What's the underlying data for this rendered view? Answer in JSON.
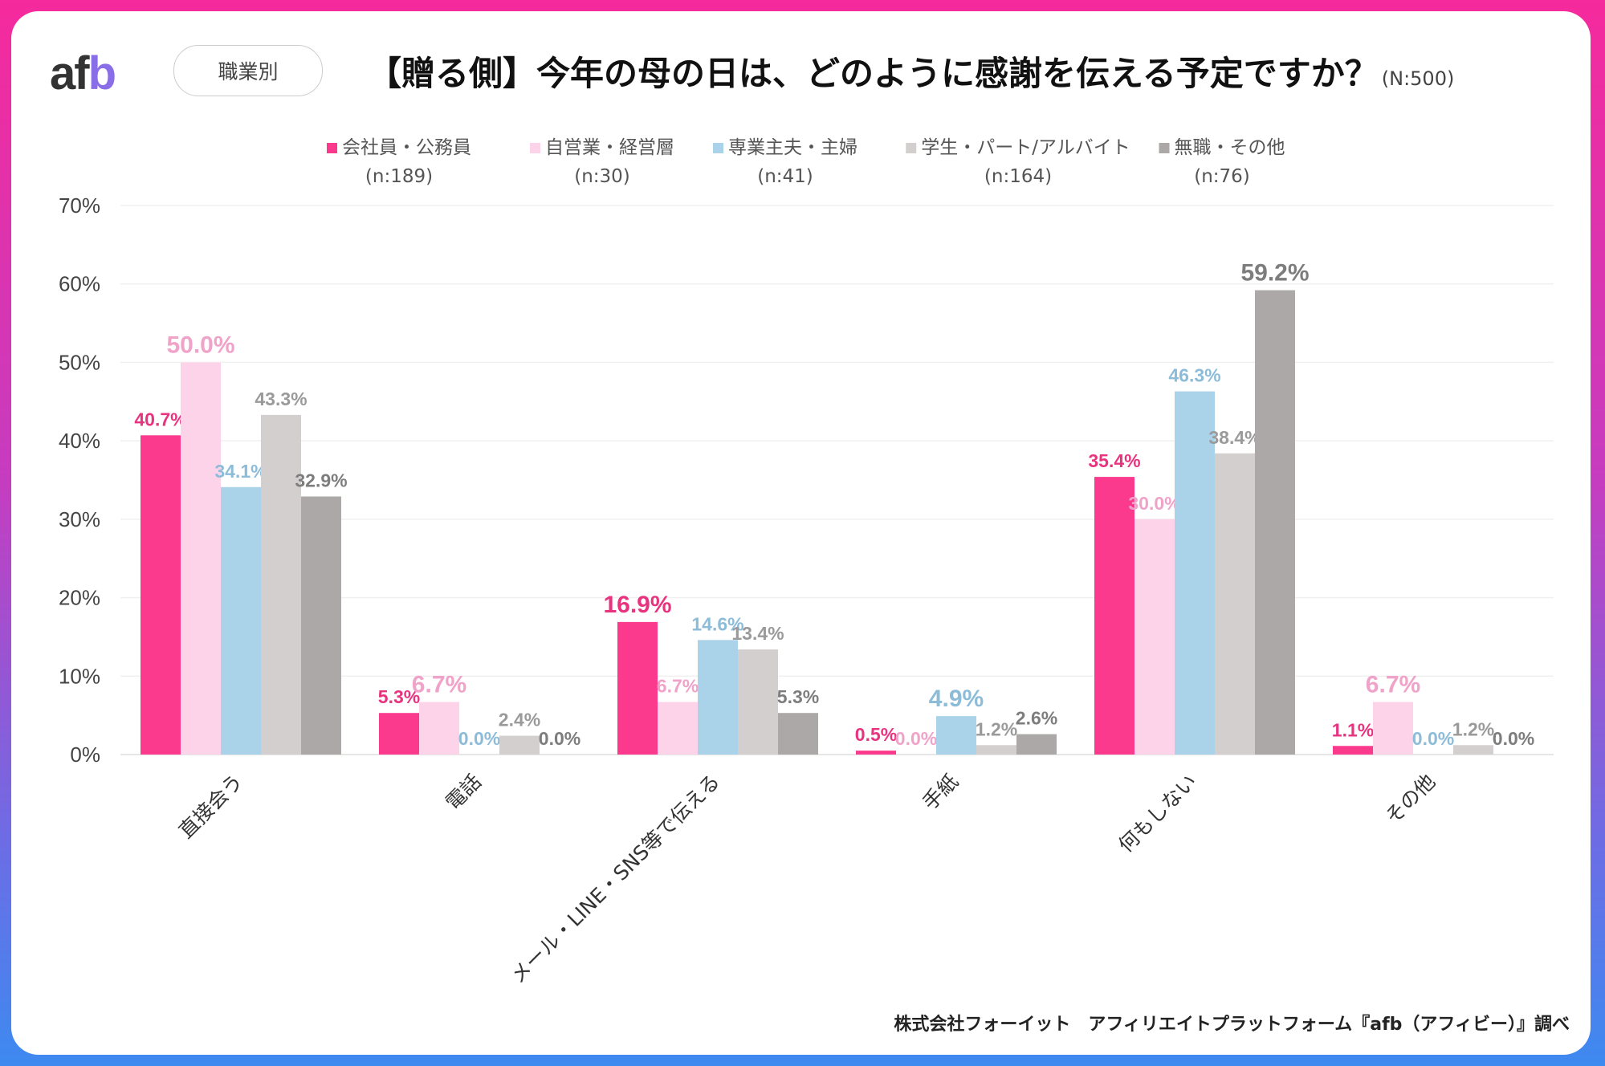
{
  "header": {
    "logo": "afb",
    "filter_pill": "職業別",
    "title": "【贈る側】今年の母の日は、どのように感謝を伝える予定ですか？",
    "sample": "(N:500)"
  },
  "source": "株式会社フォーイット　アフィリエイトプラットフォーム『afb（アフィビー）』調べ",
  "chart_data": {
    "type": "bar",
    "categories": [
      "直接会う",
      "電話",
      "メール・LINE・SNS等で伝える",
      "手紙",
      "何もしない",
      "その他"
    ],
    "series": [
      {
        "name": "会社員・公務員",
        "n": "(n:189)",
        "color": "#fb3a8e",
        "label_color": "#e8337f",
        "values": [
          40.7,
          5.3,
          16.9,
          0.5,
          35.4,
          1.1
        ]
      },
      {
        "name": "自営業・経営層",
        "n": "(n:30)",
        "color": "#fdd3ea",
        "label_color": "#f0a3c9",
        "values": [
          50.0,
          6.7,
          6.7,
          0.0,
          30.0,
          6.7
        ]
      },
      {
        "name": "専業主夫・主婦",
        "n": "(n:41)",
        "color": "#aad3ea",
        "label_color": "#8dbcd9",
        "values": [
          34.1,
          0.0,
          14.6,
          4.9,
          46.3,
          0.0
        ]
      },
      {
        "name": "学生・パート/アルバイト",
        "n": "(n:164)",
        "color": "#d3cfcf",
        "label_color": "#9a9a9a",
        "values": [
          43.3,
          2.4,
          13.4,
          1.2,
          38.4,
          1.2
        ]
      },
      {
        "name": "無職・その他",
        "n": "(n:76)",
        "color": "#aca8a7",
        "label_color": "#7d7d7d",
        "values": [
          32.9,
          0.0,
          5.3,
          2.6,
          59.2,
          0.0
        ]
      }
    ],
    "yticks": [
      "0%",
      "10%",
      "20%",
      "30%",
      "40%",
      "50%",
      "60%",
      "70%"
    ],
    "ylim": [
      0,
      70
    ],
    "grid": true,
    "legend": "top"
  }
}
